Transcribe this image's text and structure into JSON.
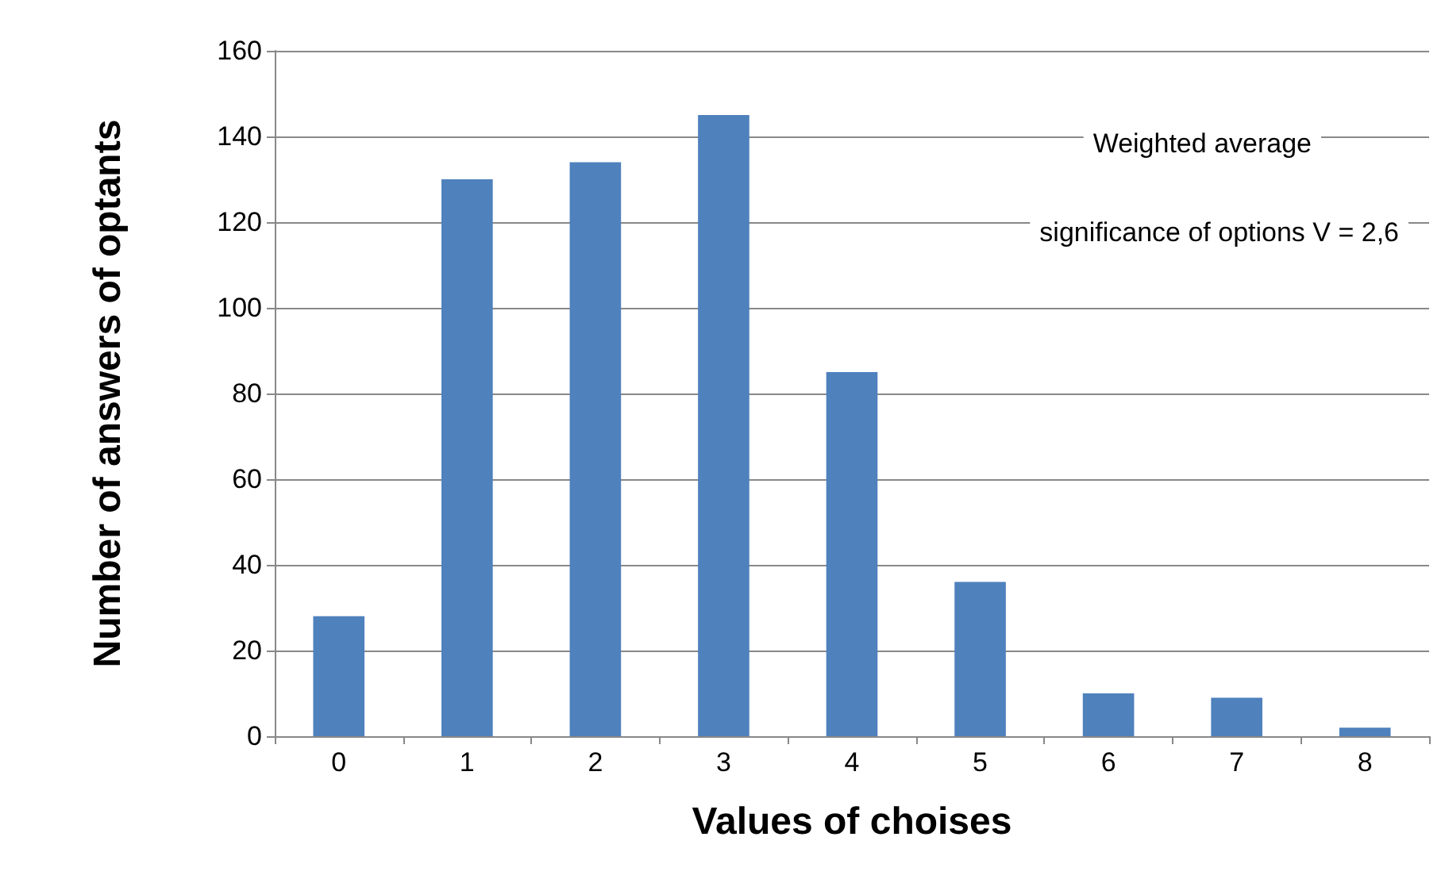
{
  "chart_data": {
    "type": "bar",
    "xlabel": "Values of choises",
    "ylabel": "Number of answers of optants",
    "categories": [
      "0",
      "1",
      "2",
      "3",
      "4",
      "5",
      "6",
      "7",
      "8"
    ],
    "values": [
      28,
      130,
      134,
      145,
      85,
      36,
      10,
      9,
      2
    ],
    "color": "#4f81bd",
    "ylim": [
      0,
      160
    ],
    "yticks": [
      0,
      20,
      40,
      60,
      80,
      100,
      120,
      140,
      160
    ],
    "grid": "y",
    "annotations": [
      "Weighted average",
      "significance of options V = 2,6"
    ]
  }
}
